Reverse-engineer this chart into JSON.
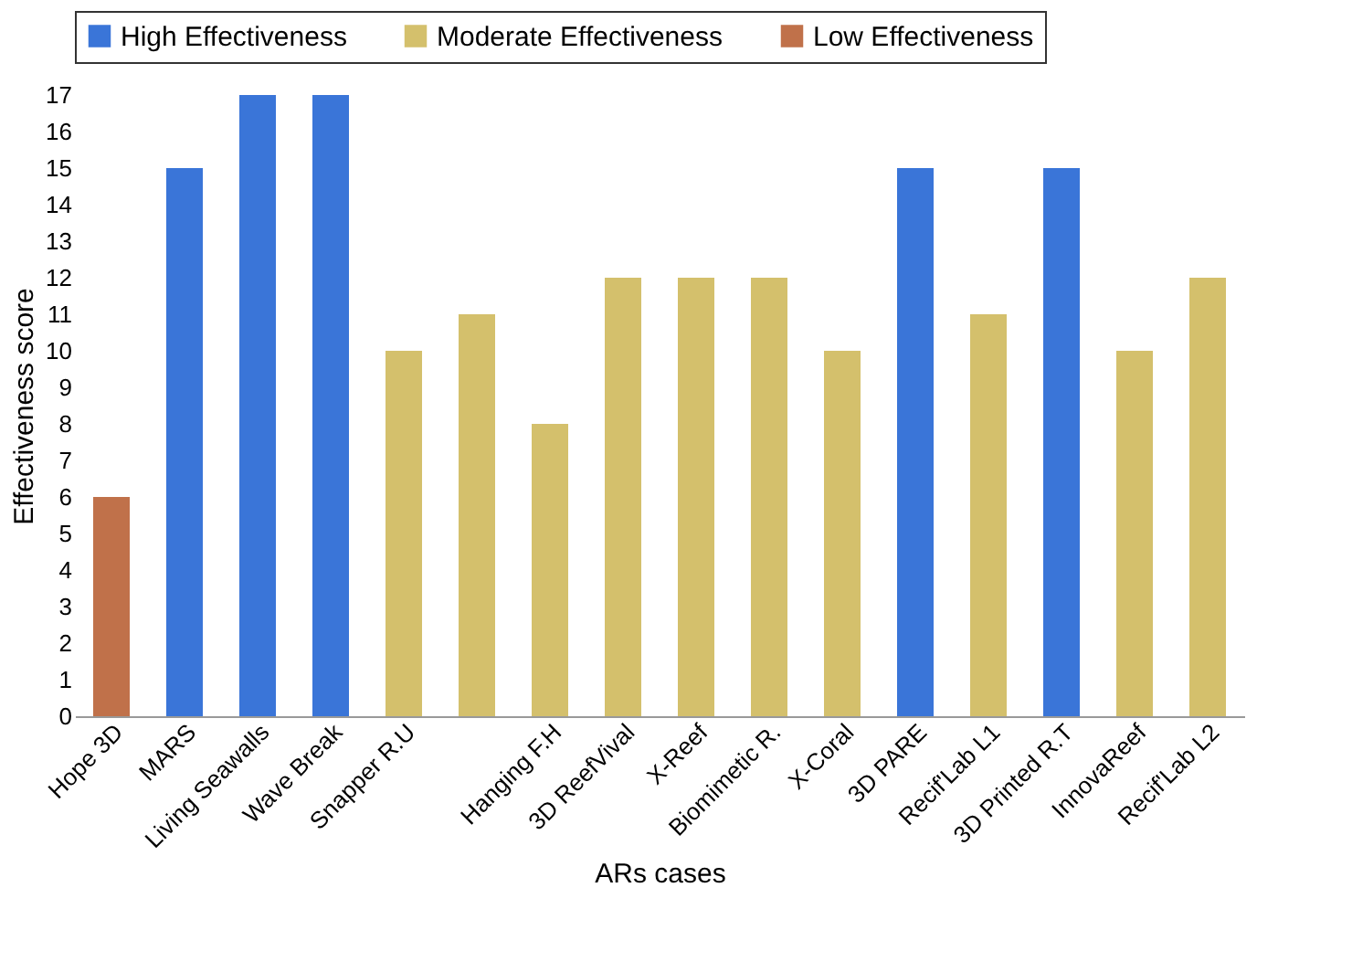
{
  "chart_data": {
    "type": "bar",
    "xlabel": "ARs cases",
    "ylabel": "Effectiveness score",
    "categories": [
      "Hope 3D",
      "MARS",
      "Living Seawalls",
      "Wave Break",
      "Snapper R.U",
      null,
      "Hanging F.H",
      "3D ReefVival",
      "X-Reef",
      "Biomimetic R.",
      "X-Coral",
      "3D PARE",
      "Recif'Lab L1",
      "3D Printed R.T",
      "InnovaReef",
      "Recif'Lab L2"
    ],
    "series": [
      {
        "name": "High Effectiveness",
        "color": "#3a75d8",
        "values": [
          null,
          15,
          17,
          17,
          null,
          null,
          null,
          null,
          null,
          null,
          null,
          15,
          null,
          15,
          null,
          null
        ]
      },
      {
        "name": "Moderate Effectiveness",
        "color": "#d4c06c",
        "values": [
          null,
          null,
          null,
          null,
          10,
          11,
          8,
          12,
          12,
          12,
          10,
          null,
          11,
          null,
          10,
          12
        ]
      },
      {
        "name": "Low Effectiveness",
        "color": "#c0714a",
        "values": [
          6,
          null,
          null,
          null,
          null,
          null,
          null,
          null,
          null,
          null,
          null,
          null,
          null,
          null,
          null,
          null
        ]
      }
    ],
    "ylim": [
      0,
      17
    ],
    "yticks": [
      0,
      1,
      2,
      3,
      4,
      5,
      6,
      7,
      8,
      9,
      10,
      11,
      12,
      13,
      14,
      15,
      16,
      17
    ],
    "grid": false,
    "legend": "top"
  }
}
